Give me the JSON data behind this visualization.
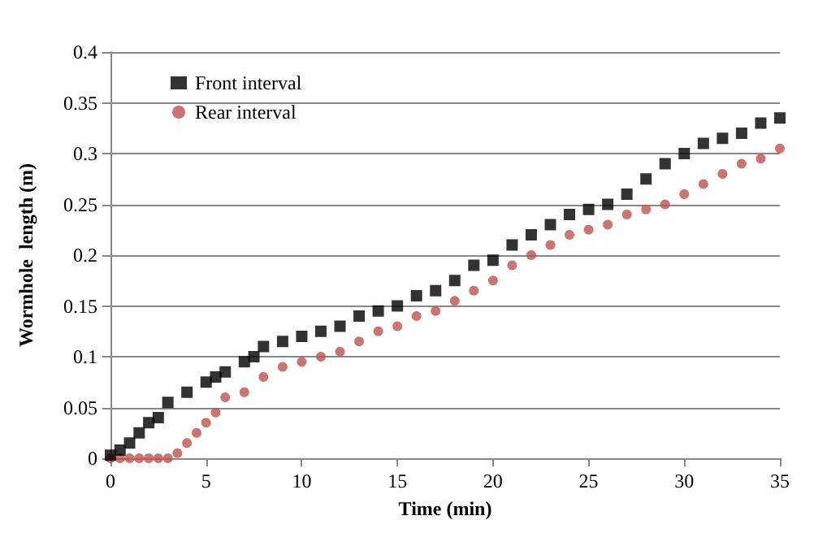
{
  "chart_data": {
    "type": "scatter",
    "xlabel": "Time (min)",
    "ylabel": "Wormhole  length (m)",
    "xlim": [
      0,
      35
    ],
    "xticks": [
      0,
      5,
      10,
      15,
      20,
      25,
      30,
      35
    ],
    "ylim": [
      0,
      0.4
    ],
    "yticks": [
      0,
      0.05,
      0.1,
      0.15,
      0.2,
      0.25,
      0.3,
      0.35,
      0.4
    ],
    "grid": "y",
    "legend": "top left",
    "series": [
      {
        "name": "Front interval",
        "color": "#000000",
        "marker": "square",
        "x": [
          0,
          0.5,
          1,
          1.5,
          2,
          2.5,
          3,
          4,
          5,
          5.5,
          6,
          7,
          7.5,
          8,
          9,
          10,
          11,
          12,
          13,
          14,
          15,
          16,
          17,
          18,
          19,
          20,
          21,
          22,
          23,
          24,
          25,
          26,
          27,
          28,
          29,
          30,
          31,
          32,
          33,
          34,
          35
        ],
        "values": [
          0.003,
          0.008,
          0.015,
          0.025,
          0.035,
          0.04,
          0.055,
          0.065,
          0.075,
          0.08,
          0.085,
          0.095,
          0.1,
          0.11,
          0.115,
          0.12,
          0.125,
          0.13,
          0.14,
          0.145,
          0.15,
          0.16,
          0.165,
          0.175,
          0.19,
          0.195,
          0.21,
          0.22,
          0.23,
          0.24,
          0.245,
          0.25,
          0.26,
          0.275,
          0.29,
          0.3,
          0.31,
          0.315,
          0.32,
          0.33,
          0.335
        ]
      },
      {
        "name": "Rear interval",
        "color": "#c0504d",
        "marker": "circle",
        "x": [
          0,
          0.5,
          1,
          1.5,
          2,
          2.5,
          3,
          3.5,
          4,
          4.5,
          5,
          5.5,
          6,
          7,
          8,
          9,
          10,
          11,
          12,
          13,
          14,
          15,
          16,
          17,
          18,
          19,
          20,
          21,
          22,
          23,
          24,
          25,
          26,
          27,
          28,
          29,
          30,
          31,
          32,
          33,
          34,
          35
        ],
        "values": [
          0,
          0,
          0,
          0,
          0,
          0,
          0,
          0.005,
          0.015,
          0.025,
          0.035,
          0.045,
          0.06,
          0.065,
          0.08,
          0.09,
          0.095,
          0.1,
          0.105,
          0.115,
          0.125,
          0.13,
          0.14,
          0.145,
          0.155,
          0.165,
          0.175,
          0.19,
          0.2,
          0.21,
          0.22,
          0.225,
          0.23,
          0.24,
          0.245,
          0.25,
          0.26,
          0.27,
          0.28,
          0.29,
          0.295,
          0.305
        ]
      }
    ]
  }
}
